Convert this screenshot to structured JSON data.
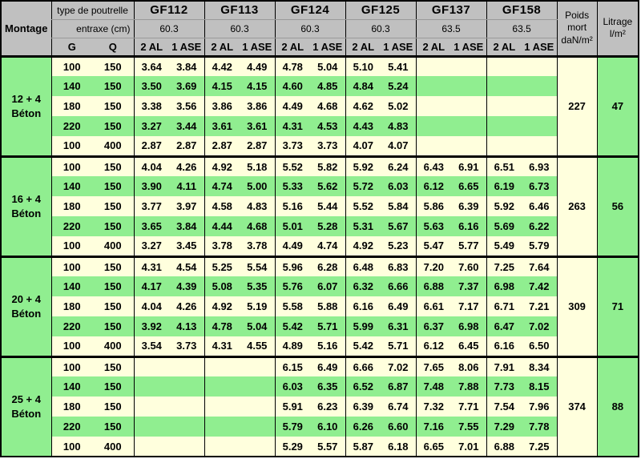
{
  "colors": {
    "header_bg": "#c0c0c0",
    "row_cream": "#ffffdd",
    "row_green": "#90ee90",
    "border": "#000000"
  },
  "header": {
    "montage_label": "Montage",
    "type_label": "type de poutrelle",
    "entraxe_label": "entraxe (cm)",
    "g_label": "G",
    "q_label": "Q",
    "al_label": "2 AL",
    "ase_label": "1 ASE",
    "poids_label": "Poids\nmort\ndaN/m²",
    "litrage_label": "Litrage\nl/m²",
    "beams": [
      {
        "name": "GF112",
        "entraxe": "60.3"
      },
      {
        "name": "GF113",
        "entraxe": "60.3"
      },
      {
        "name": "GF124",
        "entraxe": "60.3"
      },
      {
        "name": "GF125",
        "entraxe": "60.3"
      },
      {
        "name": "GF137",
        "entraxe": "63.5"
      },
      {
        "name": "GF158",
        "entraxe": "63.5"
      }
    ]
  },
  "blocks": [
    {
      "montage": "12 + 4\nBéton",
      "poids": "227",
      "litrage": "47",
      "rows": [
        {
          "g": "100",
          "q": "150",
          "values": [
            [
              "3.64",
              "3.84"
            ],
            [
              "4.42",
              "4.49"
            ],
            [
              "4.78",
              "5.04"
            ],
            [
              "5.10",
              "5.41"
            ],
            [
              "",
              ""
            ],
            [
              "",
              ""
            ]
          ]
        },
        {
          "g": "140",
          "q": "150",
          "values": [
            [
              "3.50",
              "3.69"
            ],
            [
              "4.15",
              "4.15"
            ],
            [
              "4.60",
              "4.85"
            ],
            [
              "4.84",
              "5.24"
            ],
            [
              "",
              ""
            ],
            [
              "",
              ""
            ]
          ]
        },
        {
          "g": "180",
          "q": "150",
          "values": [
            [
              "3.38",
              "3.56"
            ],
            [
              "3.86",
              "3.86"
            ],
            [
              "4.49",
              "4.68"
            ],
            [
              "4.62",
              "5.02"
            ],
            [
              "",
              ""
            ],
            [
              "",
              ""
            ]
          ]
        },
        {
          "g": "220",
          "q": "150",
          "values": [
            [
              "3.27",
              "3.44"
            ],
            [
              "3.61",
              "3.61"
            ],
            [
              "4.31",
              "4.53"
            ],
            [
              "4.43",
              "4.83"
            ],
            [
              "",
              ""
            ],
            [
              "",
              ""
            ]
          ]
        },
        {
          "g": "100",
          "q": "400",
          "values": [
            [
              "2.87",
              "2.87"
            ],
            [
              "2.87",
              "2.87"
            ],
            [
              "3.73",
              "3.73"
            ],
            [
              "4.07",
              "4.07"
            ],
            [
              "",
              ""
            ],
            [
              "",
              ""
            ]
          ]
        }
      ]
    },
    {
      "montage": "16 + 4\nBéton",
      "poids": "263",
      "litrage": "56",
      "rows": [
        {
          "g": "100",
          "q": "150",
          "values": [
            [
              "4.04",
              "4.26"
            ],
            [
              "4.92",
              "5.18"
            ],
            [
              "5.52",
              "5.82"
            ],
            [
              "5.92",
              "6.24"
            ],
            [
              "6.43",
              "6.91"
            ],
            [
              "6.51",
              "6.93"
            ]
          ]
        },
        {
          "g": "140",
          "q": "150",
          "values": [
            [
              "3.90",
              "4.11"
            ],
            [
              "4.74",
              "5.00"
            ],
            [
              "5.33",
              "5.62"
            ],
            [
              "5.72",
              "6.03"
            ],
            [
              "6.12",
              "6.65"
            ],
            [
              "6.19",
              "6.73"
            ]
          ]
        },
        {
          "g": "180",
          "q": "150",
          "values": [
            [
              "3.77",
              "3.97"
            ],
            [
              "4.58",
              "4.83"
            ],
            [
              "5.16",
              "5.44"
            ],
            [
              "5.52",
              "5.84"
            ],
            [
              "5.86",
              "6.39"
            ],
            [
              "5.92",
              "6.46"
            ]
          ]
        },
        {
          "g": "220",
          "q": "150",
          "values": [
            [
              "3.65",
              "3.84"
            ],
            [
              "4.44",
              "4.68"
            ],
            [
              "5.01",
              "5.28"
            ],
            [
              "5.31",
              "5.67"
            ],
            [
              "5.63",
              "6.16"
            ],
            [
              "5.69",
              "6.22"
            ]
          ]
        },
        {
          "g": "100",
          "q": "400",
          "values": [
            [
              "3.27",
              "3.45"
            ],
            [
              "3.78",
              "3.78"
            ],
            [
              "4.49",
              "4.74"
            ],
            [
              "4.92",
              "5.23"
            ],
            [
              "5.47",
              "5.77"
            ],
            [
              "5.49",
              "5.79"
            ]
          ]
        }
      ]
    },
    {
      "montage": "20 + 4\nBéton",
      "poids": "309",
      "litrage": "71",
      "rows": [
        {
          "g": "100",
          "q": "150",
          "values": [
            [
              "4.31",
              "4.54"
            ],
            [
              "5.25",
              "5.54"
            ],
            [
              "5.96",
              "6.28"
            ],
            [
              "6.48",
              "6.83"
            ],
            [
              "7.20",
              "7.60"
            ],
            [
              "7.25",
              "7.64"
            ]
          ]
        },
        {
          "g": "140",
          "q": "150",
          "values": [
            [
              "4.17",
              "4.39"
            ],
            [
              "5.08",
              "5.35"
            ],
            [
              "5.76",
              "6.07"
            ],
            [
              "6.32",
              "6.66"
            ],
            [
              "6.88",
              "7.37"
            ],
            [
              "6.98",
              "7.42"
            ]
          ]
        },
        {
          "g": "180",
          "q": "150",
          "values": [
            [
              "4.04",
              "4.26"
            ],
            [
              "4.92",
              "5.19"
            ],
            [
              "5.58",
              "5.88"
            ],
            [
              "6.16",
              "6.49"
            ],
            [
              "6.61",
              "7.17"
            ],
            [
              "6.71",
              "7.21"
            ]
          ]
        },
        {
          "g": "220",
          "q": "150",
          "values": [
            [
              "3.92",
              "4.13"
            ],
            [
              "4.78",
              "5.04"
            ],
            [
              "5.42",
              "5.71"
            ],
            [
              "5.99",
              "6.31"
            ],
            [
              "6.37",
              "6.98"
            ],
            [
              "6.47",
              "7.02"
            ]
          ]
        },
        {
          "g": "100",
          "q": "400",
          "values": [
            [
              "3.54",
              "3.73"
            ],
            [
              "4.31",
              "4.55"
            ],
            [
              "4.89",
              "5.16"
            ],
            [
              "5.42",
              "5.71"
            ],
            [
              "6.12",
              "6.45"
            ],
            [
              "6.16",
              "6.50"
            ]
          ]
        }
      ]
    },
    {
      "montage": "25 + 4\nBéton",
      "poids": "374",
      "litrage": "88",
      "rows": [
        {
          "g": "100",
          "q": "150",
          "values": [
            [
              "",
              ""
            ],
            [
              "",
              ""
            ],
            [
              "6.15",
              "6.49"
            ],
            [
              "6.66",
              "7.02"
            ],
            [
              "7.65",
              "8.06"
            ],
            [
              "7.91",
              "8.34"
            ]
          ]
        },
        {
          "g": "140",
          "q": "150",
          "values": [
            [
              "",
              ""
            ],
            [
              "",
              ""
            ],
            [
              "6.03",
              "6.35"
            ],
            [
              "6.52",
              "6.87"
            ],
            [
              "7.48",
              "7.88"
            ],
            [
              "7.73",
              "8.15"
            ]
          ]
        },
        {
          "g": "180",
          "q": "150",
          "values": [
            [
              "",
              ""
            ],
            [
              "",
              ""
            ],
            [
              "5.91",
              "6.23"
            ],
            [
              "6.39",
              "6.74"
            ],
            [
              "7.32",
              "7.71"
            ],
            [
              "7.54",
              "7.96"
            ]
          ]
        },
        {
          "g": "220",
          "q": "150",
          "values": [
            [
              "",
              ""
            ],
            [
              "",
              ""
            ],
            [
              "5.79",
              "6.10"
            ],
            [
              "6.26",
              "6.60"
            ],
            [
              "7.16",
              "7.55"
            ],
            [
              "7.29",
              "7.78"
            ]
          ]
        },
        {
          "g": "100",
          "q": "400",
          "values": [
            [
              "",
              ""
            ],
            [
              "",
              ""
            ],
            [
              "5.29",
              "5.57"
            ],
            [
              "5.87",
              "6.18"
            ],
            [
              "6.65",
              "7.01"
            ],
            [
              "6.88",
              "7.25"
            ]
          ]
        }
      ]
    }
  ]
}
